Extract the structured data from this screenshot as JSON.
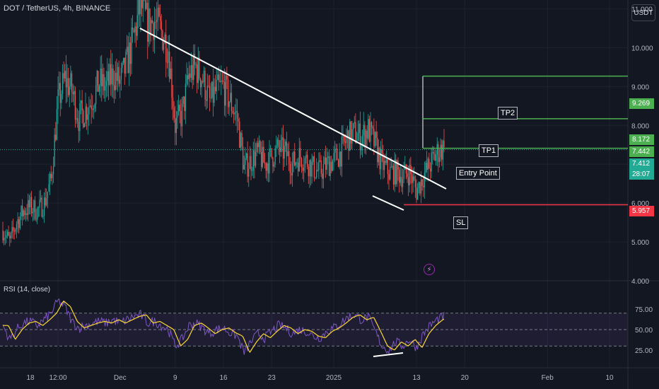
{
  "header": {
    "symbol_title": "DOT / TetherUS, 4h, BINANCE",
    "currency": "USDT"
  },
  "annotations": {
    "tp2": "TP2",
    "tp1": "TP1",
    "entry": "Entry Point",
    "sl": "SL"
  },
  "price_tags": {
    "tp2": "9.269",
    "tp1": "8.172",
    "last": "7.442",
    "entry": "7.412",
    "countdown": "28:07",
    "sl": "5.957"
  },
  "colors": {
    "background": "#131722",
    "up": "#26a69a",
    "down": "#ef5350",
    "tp": "#4caf50",
    "sl": "#f23645",
    "rsi_line": "#7e57c2",
    "rsi_ma": "#fdd835",
    "trendline": "#ffffff"
  },
  "rsi": {
    "title": "RSI (14, close)"
  },
  "chart_data": [
    {
      "type": "candlestick",
      "title": "DOT / TetherUS, 4h, BINANCE",
      "y_axis": {
        "ticks": [
          4.0,
          5.0,
          6.0,
          7.0,
          8.0,
          9.0,
          10.0,
          11.0
        ],
        "tick_labels": [
          "4.000",
          "5.000",
          "6.000",
          "7.000",
          "8.000",
          "9.000",
          "10.000",
          "11.000"
        ],
        "range": [
          3.9,
          11.8
        ]
      },
      "x_axis": {
        "tick_labels": [
          "18",
          "12:00",
          "Dec",
          "9",
          "16",
          "23",
          "2025",
          "13",
          "20",
          "Feb",
          "10"
        ]
      },
      "price_path": [
        [
          "Nov 14",
          5.3
        ],
        [
          "Nov 15",
          5.0
        ],
        [
          "Nov 16",
          5.5
        ],
        [
          "Nov 17",
          5.8
        ],
        [
          "Nov 18",
          5.9
        ],
        [
          "Nov 19",
          5.8
        ],
        [
          "Nov 20",
          6.0
        ],
        [
          "Nov 21",
          6.6
        ],
        [
          "Nov 22",
          8.6
        ],
        [
          "Nov 23",
          9.2
        ],
        [
          "Nov 24",
          8.9
        ],
        [
          "Nov 25",
          8.2
        ],
        [
          "Nov 26",
          8.4
        ],
        [
          "Nov 27",
          8.7
        ],
        [
          "Nov 28",
          9.1
        ],
        [
          "Nov 29",
          9.0
        ],
        [
          "Nov 30",
          9.3
        ],
        [
          "Dec 01",
          9.1
        ],
        [
          "Dec 02",
          9.6
        ],
        [
          "Dec 03",
          10.3
        ],
        [
          "Dec 04",
          11.1
        ],
        [
          "Dec 05",
          10.6
        ],
        [
          "Dec 06",
          10.7
        ],
        [
          "Dec 07",
          10.4
        ],
        [
          "Dec 08",
          10.0
        ],
        [
          "Dec 09",
          8.0
        ],
        [
          "Dec 10",
          8.3
        ],
        [
          "Dec 11",
          9.3
        ],
        [
          "Dec 12",
          9.5
        ],
        [
          "Dec 13",
          9.2
        ],
        [
          "Dec 14",
          8.6
        ],
        [
          "Dec 15",
          8.9
        ],
        [
          "Dec 16",
          9.0
        ],
        [
          "Dec 17",
          8.6
        ],
        [
          "Dec 18",
          8.2
        ],
        [
          "Dec 19",
          6.9
        ],
        [
          "Dec 20",
          7.1
        ],
        [
          "Dec 21",
          7.3
        ],
        [
          "Dec 22",
          7.0
        ],
        [
          "Dec 23",
          7.2
        ],
        [
          "Dec 24",
          7.4
        ],
        [
          "Dec 25",
          7.3
        ],
        [
          "Dec 26",
          7.0
        ],
        [
          "Dec 27",
          7.2
        ],
        [
          "Dec 28",
          7.1
        ],
        [
          "Dec 29",
          6.9
        ],
        [
          "Dec 30",
          6.8
        ],
        [
          "Dec 31",
          7.0
        ],
        [
          "Jan 01",
          7.1
        ],
        [
          "Jan 02",
          7.3
        ],
        [
          "Jan 03",
          7.7
        ],
        [
          "Jan 04",
          7.8
        ],
        [
          "Jan 05",
          7.7
        ],
        [
          "Jan 06",
          7.9
        ],
        [
          "Jan 07",
          7.5
        ],
        [
          "Jan 08",
          7.0
        ],
        [
          "Jan 09",
          6.8
        ],
        [
          "Jan 10",
          6.8
        ],
        [
          "Jan 11",
          6.7
        ],
        [
          "Jan 12",
          6.8
        ],
        [
          "Jan 13",
          6.3
        ],
        [
          "Jan 14",
          6.7
        ],
        [
          "Jan 15",
          7.0
        ],
        [
          "Jan 16",
          7.3
        ],
        [
          "Jan 17",
          7.44
        ]
      ],
      "horizontal_levels": [
        {
          "label": "TP2",
          "price": 9.269
        },
        {
          "label": "TP1",
          "price": 8.172
        },
        {
          "label": "Entry Point",
          "price": 7.412
        },
        {
          "label": "SL",
          "price": 5.957
        }
      ],
      "last_price": 7.442,
      "countdown": "28:07",
      "grid": true
    },
    {
      "type": "line",
      "title": "RSI (14, close)",
      "y_axis": {
        "ticks": [
          25.0,
          50.0,
          75.0
        ],
        "tick_labels": [
          "25.00",
          "50.00",
          "75.00"
        ],
        "range": [
          15,
          90
        ]
      },
      "band": [
        30,
        70
      ],
      "rsi_path": [
        [
          "Nov 14",
          55
        ],
        [
          "Nov 15",
          38
        ],
        [
          "Nov 16",
          50
        ],
        [
          "Nov 17",
          58
        ],
        [
          "Nov 18",
          60
        ],
        [
          "Nov 19",
          55
        ],
        [
          "Nov 20",
          62
        ],
        [
          "Nov 21",
          70
        ],
        [
          "Nov 22",
          85
        ],
        [
          "Nov 23",
          78
        ],
        [
          "Nov 24",
          60
        ],
        [
          "Nov 25",
          52
        ],
        [
          "Nov 26",
          55
        ],
        [
          "Nov 27",
          58
        ],
        [
          "Nov 28",
          60
        ],
        [
          "Nov 29",
          58
        ],
        [
          "Nov 30",
          62
        ],
        [
          "Dec 01",
          58
        ],
        [
          "Dec 02",
          62
        ],
        [
          "Dec 03",
          66
        ],
        [
          "Dec 04",
          68
        ],
        [
          "Dec 05",
          58
        ],
        [
          "Dec 06",
          60
        ],
        [
          "Dec 07",
          55
        ],
        [
          "Dec 08",
          50
        ],
        [
          "Dec 09",
          30
        ],
        [
          "Dec 10",
          38
        ],
        [
          "Dec 11",
          55
        ],
        [
          "Dec 12",
          58
        ],
        [
          "Dec 13",
          52
        ],
        [
          "Dec 14",
          45
        ],
        [
          "Dec 15",
          50
        ],
        [
          "Dec 16",
          52
        ],
        [
          "Dec 17",
          46
        ],
        [
          "Dec 18",
          42
        ],
        [
          "Dec 19",
          22
        ],
        [
          "Dec 20",
          35
        ],
        [
          "Dec 21",
          45
        ],
        [
          "Dec 22",
          40
        ],
        [
          "Dec 23",
          48
        ],
        [
          "Dec 24",
          55
        ],
        [
          "Dec 25",
          52
        ],
        [
          "Dec 26",
          45
        ],
        [
          "Dec 27",
          50
        ],
        [
          "Dec 28",
          48
        ],
        [
          "Dec 29",
          42
        ],
        [
          "Dec 30",
          40
        ],
        [
          "Dec 31",
          48
        ],
        [
          "Jan 01",
          52
        ],
        [
          "Jan 02",
          58
        ],
        [
          "Jan 03",
          65
        ],
        [
          "Jan 04",
          68
        ],
        [
          "Jan 05",
          62
        ],
        [
          "Jan 06",
          65
        ],
        [
          "Jan 07",
          48
        ],
        [
          "Jan 08",
          30
        ],
        [
          "Jan 09",
          25
        ],
        [
          "Jan 10",
          35
        ],
        [
          "Jan 11",
          30
        ],
        [
          "Jan 12",
          38
        ],
        [
          "Jan 13",
          28
        ],
        [
          "Jan 14",
          45
        ],
        [
          "Jan 15",
          55
        ],
        [
          "Jan 16",
          62
        ],
        [
          "Jan 17",
          66
        ]
      ]
    }
  ]
}
